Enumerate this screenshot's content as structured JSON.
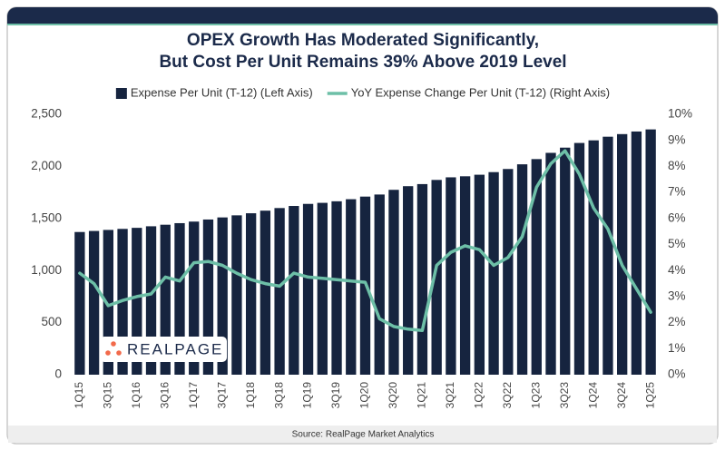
{
  "chart_data": {
    "type": "bar",
    "title": [
      "OPEX Growth Has Moderated Significantly,",
      "But Cost Per Unit Remains 39% Above 2019 Level"
    ],
    "source": "Source: RealPage Market Analytics",
    "logo": "REALPAGE",
    "categories": [
      "1Q15",
      null,
      "3Q15",
      null,
      "1Q16",
      null,
      "3Q16",
      null,
      "1Q17",
      null,
      "3Q17",
      null,
      "1Q18",
      null,
      "3Q18",
      null,
      "1Q19",
      null,
      "3Q19",
      null,
      "1Q20",
      null,
      "3Q20",
      null,
      "1Q21",
      null,
      "3Q21",
      null,
      "1Q22",
      null,
      "3Q22",
      null,
      "1Q23",
      null,
      "3Q23",
      null,
      "1Q24",
      null,
      "3Q24",
      null,
      "1Q25"
    ],
    "series": [
      {
        "name": "Expense Per Unit (T-12) (Left Axis)",
        "type": "bar",
        "color": "#16243f",
        "values": [
          1370,
          1380,
          1390,
          1400,
          1410,
          1425,
          1440,
          1455,
          1470,
          1490,
          1510,
          1530,
          1550,
          1575,
          1600,
          1620,
          1640,
          1650,
          1665,
          1685,
          1710,
          1730,
          1775,
          1810,
          1830,
          1870,
          1895,
          1905,
          1920,
          1945,
          1975,
          2020,
          2070,
          2130,
          2180,
          2225,
          2250,
          2285,
          2310,
          2335,
          2355
        ]
      },
      {
        "name": "YoY Expense Change Per Unit (T-12) (Right Axis)",
        "type": "line",
        "axis": "y2",
        "color": "#6dbfa7",
        "values": [
          3.9,
          3.5,
          2.65,
          2.85,
          3.0,
          3.1,
          3.75,
          3.6,
          4.3,
          4.35,
          4.2,
          3.9,
          3.65,
          3.5,
          3.4,
          3.9,
          3.75,
          3.7,
          3.65,
          3.6,
          3.55,
          2.15,
          1.85,
          1.75,
          1.7,
          4.2,
          4.7,
          4.95,
          4.8,
          4.2,
          4.5,
          5.3,
          7.2,
          8.1,
          8.6,
          7.7,
          6.4,
          5.6,
          4.2,
          3.3,
          2.4
        ]
      }
    ],
    "ylim": [
      0,
      2500
    ],
    "yticks": [
      0,
      500,
      {
        "value": 1000,
        "label": "1,000"
      },
      {
        "value": 1500,
        "label": "1,500"
      },
      {
        "value": 2000,
        "label": "2,000"
      },
      {
        "value": 2500,
        "label": "2,500"
      }
    ],
    "y2lim": [
      0,
      10
    ],
    "y2ticks": [
      {
        "value": 0,
        "label": "0%"
      },
      {
        "value": 1,
        "label": "1%"
      },
      {
        "value": 2,
        "label": "2%"
      },
      {
        "value": 3,
        "label": "3%"
      },
      {
        "value": 4,
        "label": "4%"
      },
      {
        "value": 5,
        "label": "5%"
      },
      {
        "value": 6,
        "label": "6%"
      },
      {
        "value": 7,
        "label": "7%"
      },
      {
        "value": 8,
        "label": "8%"
      },
      {
        "value": 9,
        "label": "9%"
      },
      {
        "value": 10,
        "label": "10%"
      }
    ]
  }
}
